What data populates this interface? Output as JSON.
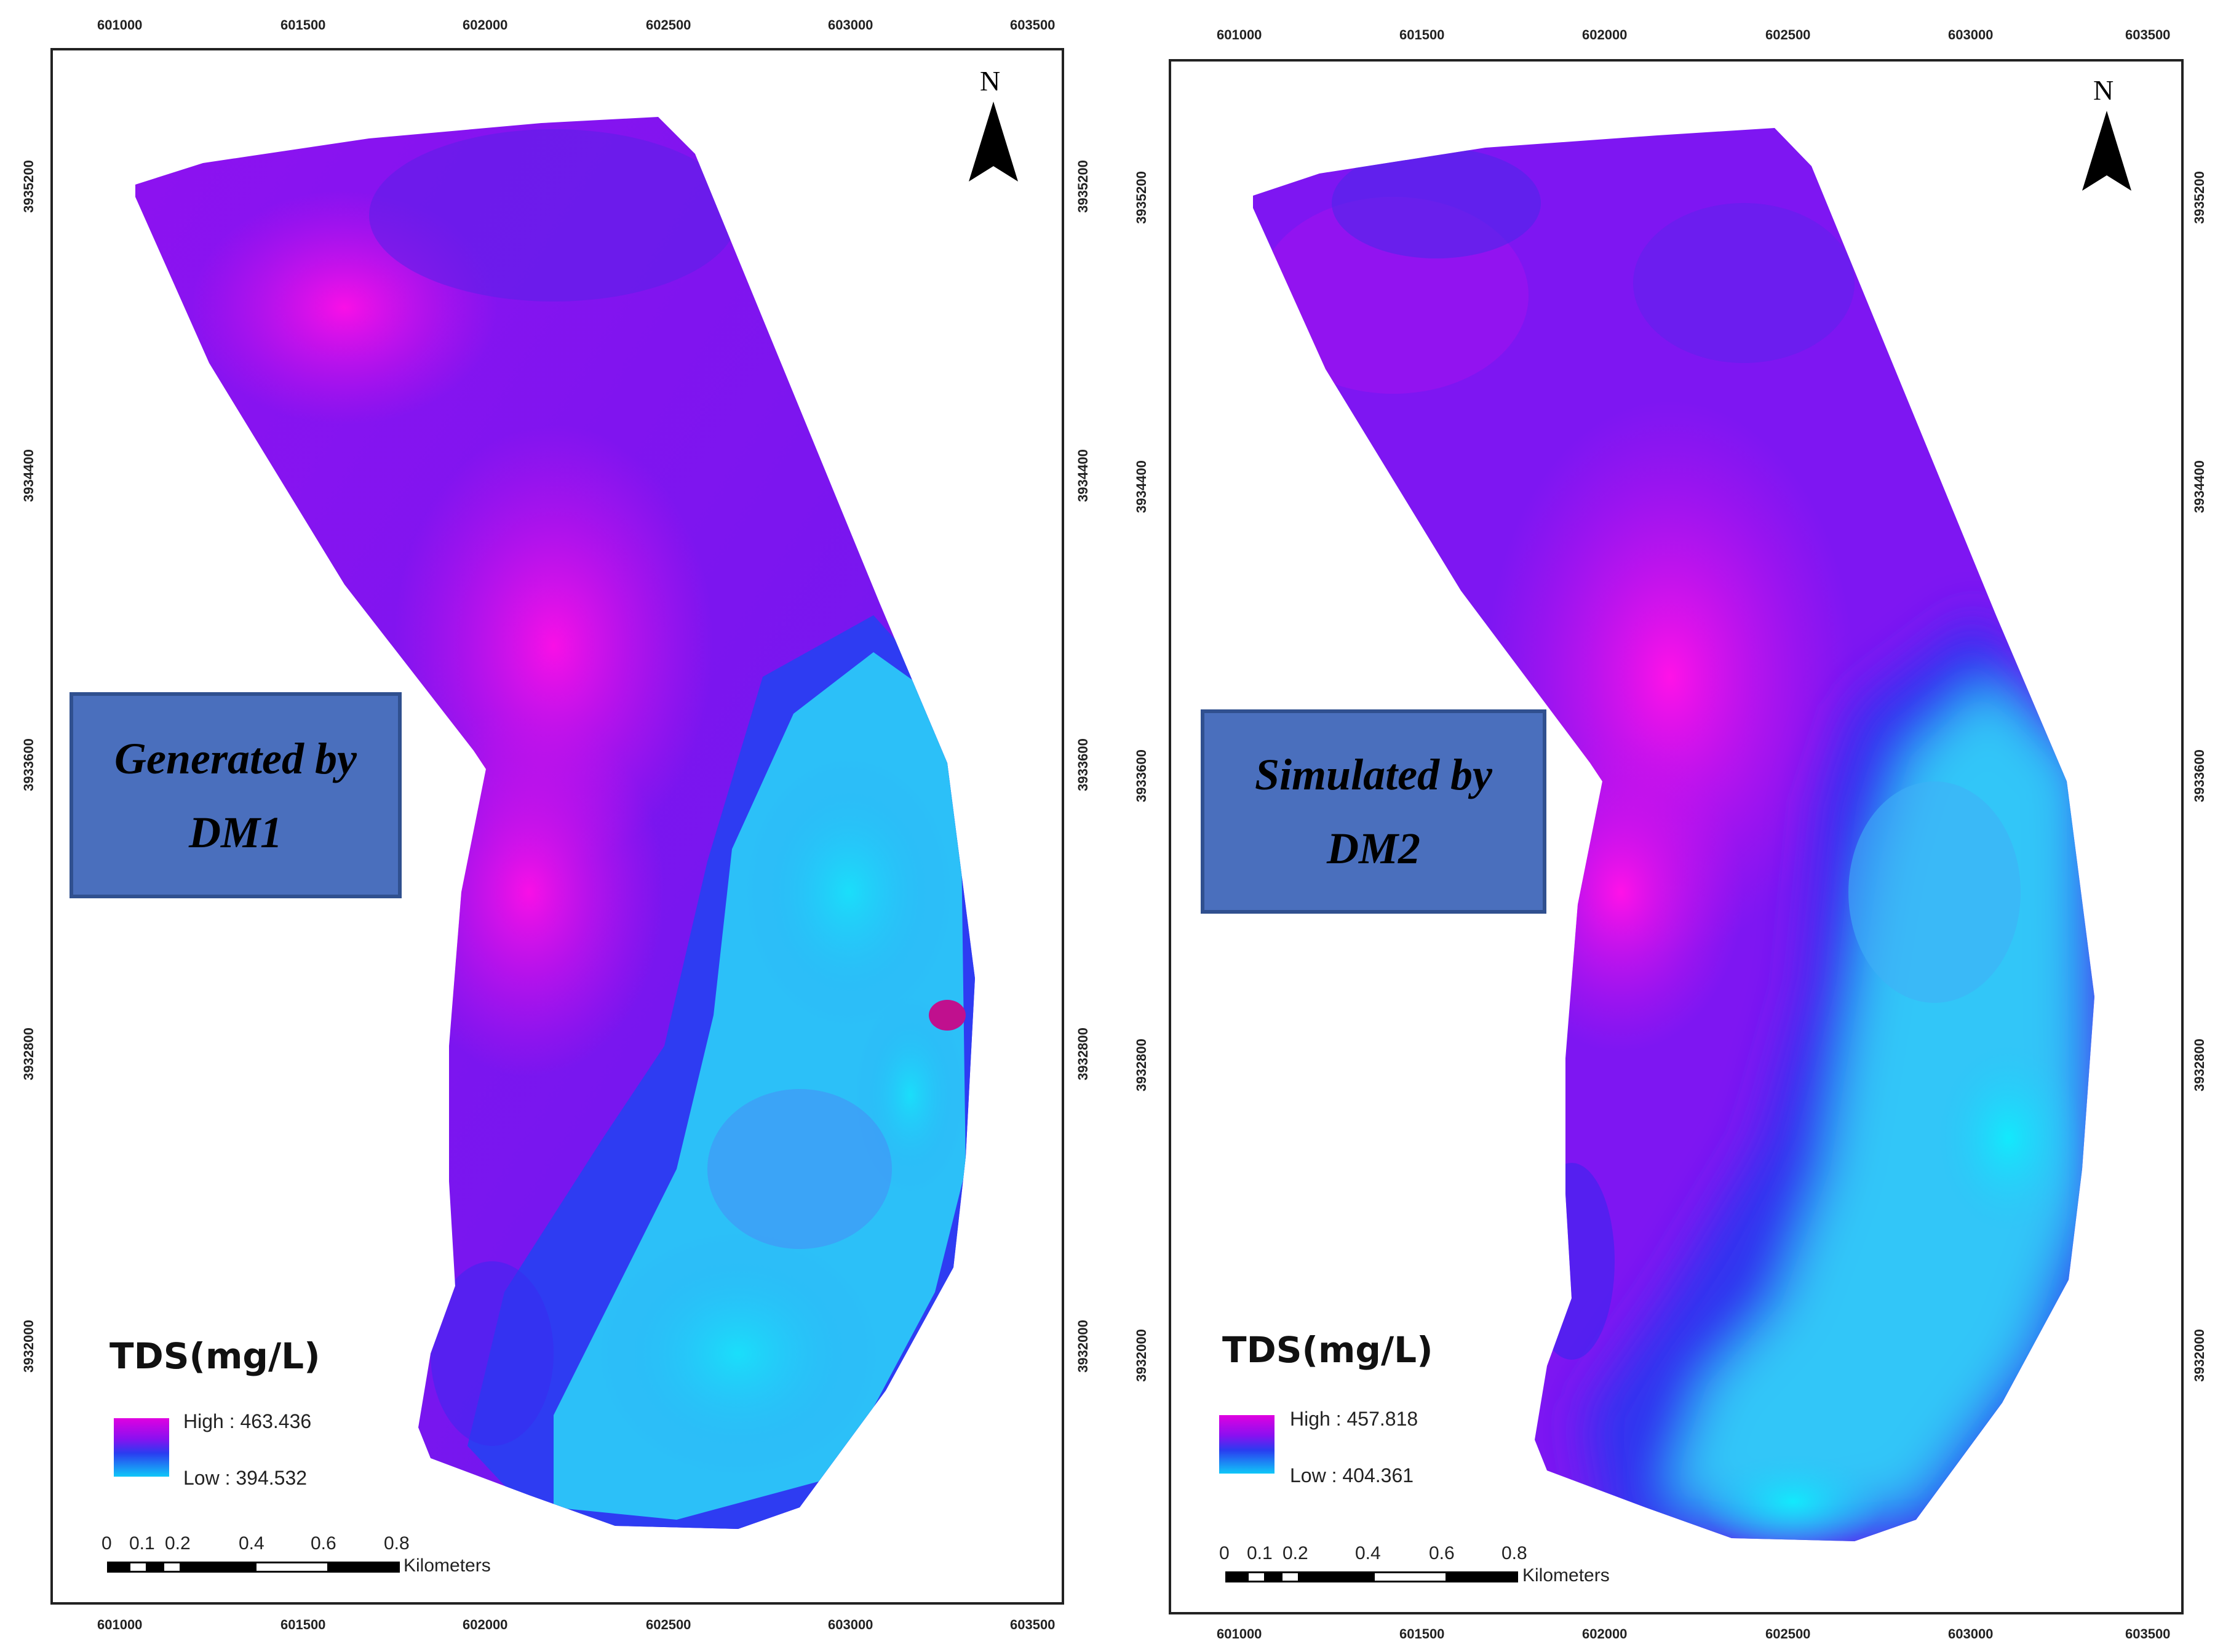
{
  "colors": {
    "high": "#e000e0",
    "mid": "#7a14f5",
    "low_blue": "#2a3cf0",
    "low": "#10d0f8",
    "badge_fill": "#4a6fbd"
  },
  "panels": [
    {
      "top_ticks": [
        "601000",
        "601500",
        "602000",
        "602500",
        "603000",
        "603500"
      ],
      "bottom_ticks": [
        "601000",
        "601500",
        "602000",
        "602500",
        "603000",
        "603500"
      ],
      "side_ticks": [
        "3935200",
        "3934400",
        "3933600",
        "3932800",
        "3932000"
      ],
      "badge_lines": [
        "Generated by",
        "DM1"
      ],
      "north": "N",
      "legend": {
        "title": "TDS(mg/L)",
        "high": "High : 463.436",
        "low": "Low : 394.532"
      },
      "scale": {
        "labels": [
          "0",
          "0.1",
          "0.2",
          "0.4",
          "0.6",
          "0.8"
        ],
        "unit": "Kilometers"
      }
    },
    {
      "top_ticks": [
        "601000",
        "601500",
        "602000",
        "602500",
        "603000",
        "603500"
      ],
      "bottom_ticks": [
        "601000",
        "601500",
        "602000",
        "602500",
        "603000",
        "603500"
      ],
      "side_ticks": [
        "3935200",
        "3934400",
        "3933600",
        "3932800",
        "3932000"
      ],
      "badge_lines": [
        "Simulated by",
        "DM2"
      ],
      "north": "N",
      "legend": {
        "title": "TDS(mg/L)",
        "high": "High : 457.818",
        "low": "Low : 404.361"
      },
      "scale": {
        "labels": [
          "0",
          "0.1",
          "0.2",
          "0.4",
          "0.6",
          "0.8"
        ],
        "unit": "Kilometers"
      }
    }
  ]
}
